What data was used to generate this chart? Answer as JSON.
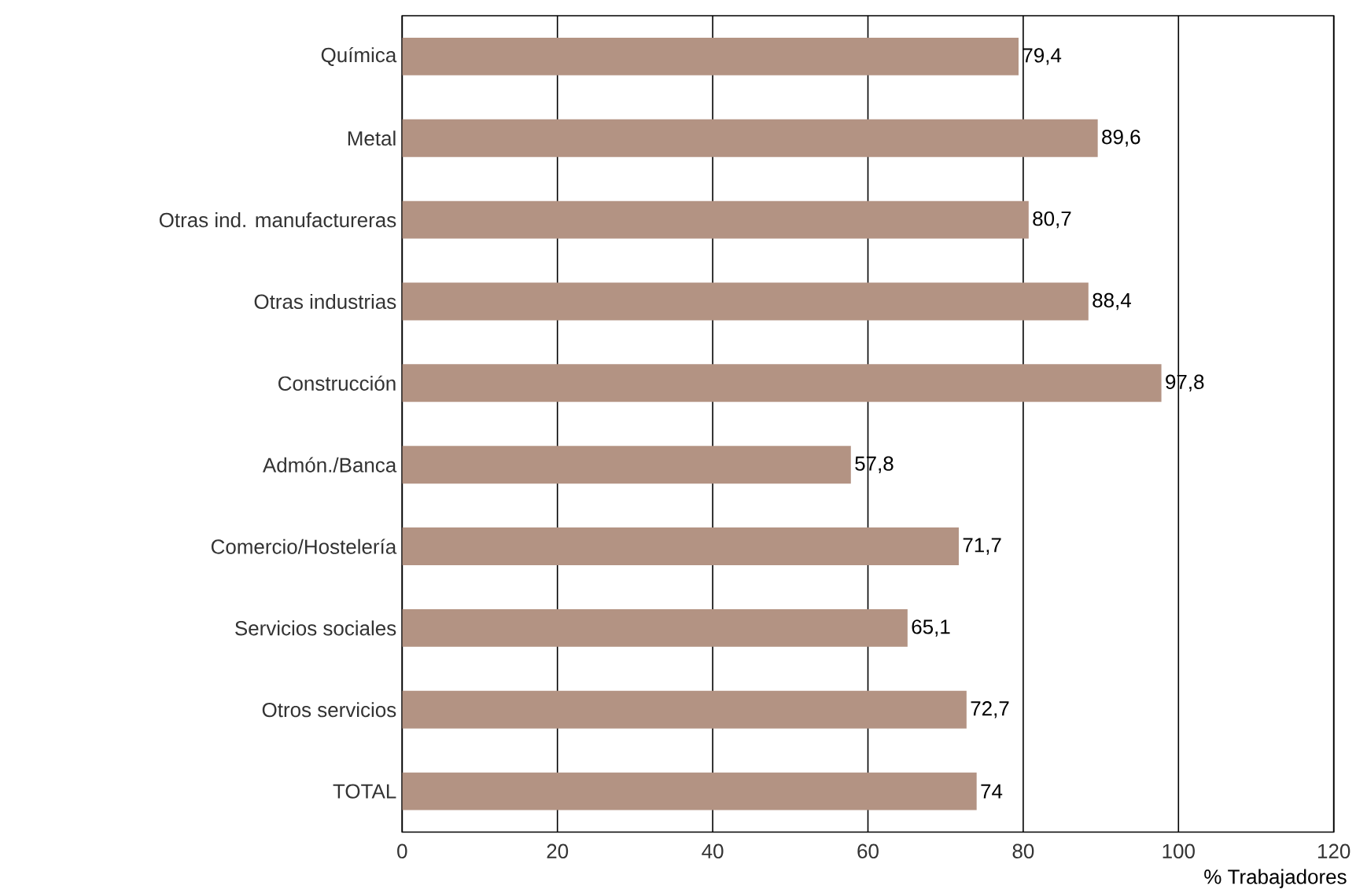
{
  "chart_data": {
    "type": "bar",
    "orientation": "horizontal",
    "xlabel": "% Trabajadores",
    "categories": [
      "Química",
      "Metal",
      "Otras ind. manufactureras",
      "Otras industrias",
      "Construcción",
      "Admón./Banca",
      "Comercio/Hostelería",
      "Servicios sociales",
      "Otros servicios",
      "TOTAL"
    ],
    "values": [
      79.4,
      89.6,
      80.7,
      88.4,
      97.8,
      57.8,
      71.7,
      65.1,
      72.7,
      74
    ],
    "value_labels": [
      "79,4",
      "89,6",
      "80,7",
      "88,4",
      "97,8",
      "57,8",
      "71,7",
      "65,1",
      "72,7",
      "74"
    ],
    "color": "#b39383",
    "xlim": [
      0,
      120
    ],
    "xticks": [
      0,
      20,
      40,
      60,
      80,
      100,
      120
    ],
    "grid": "x"
  }
}
